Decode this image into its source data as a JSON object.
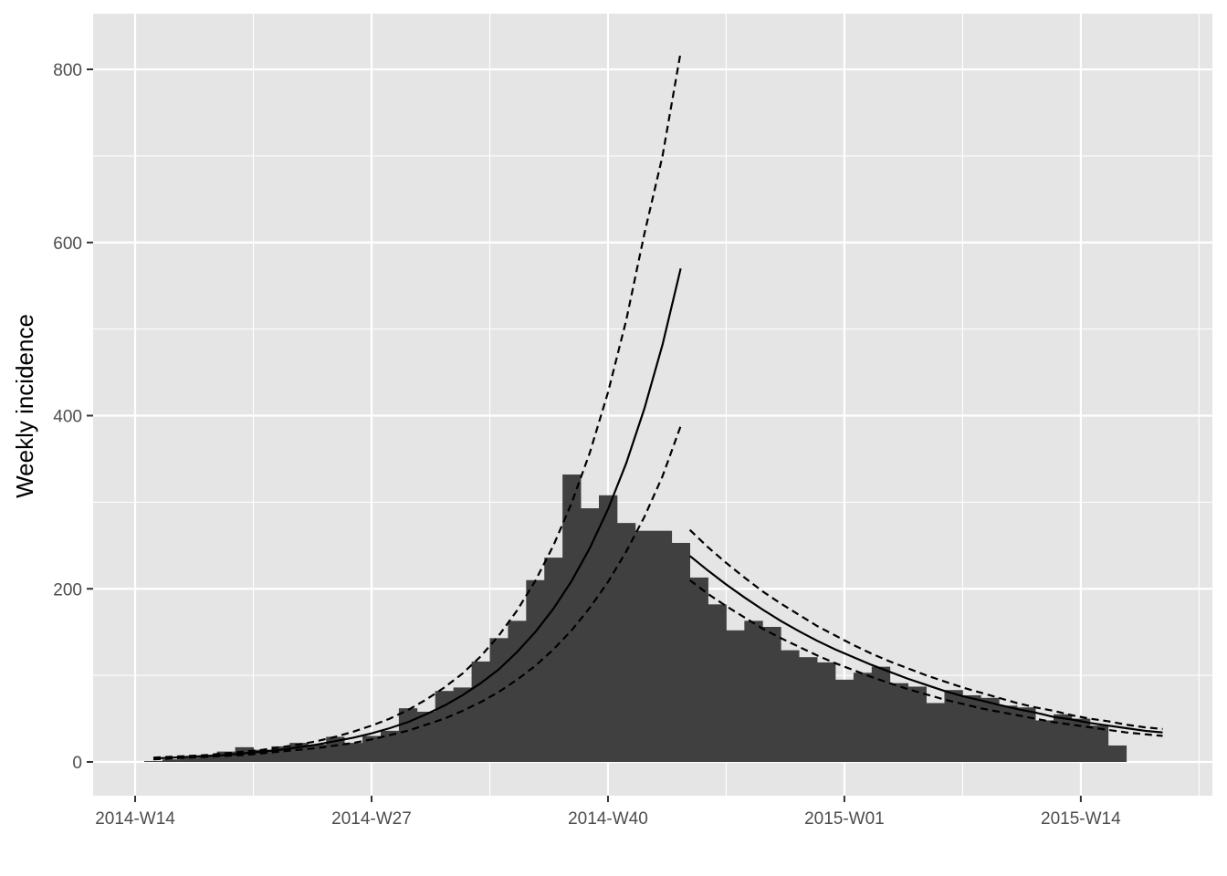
{
  "chart_data": {
    "type": "bar",
    "title": "",
    "xlabel": "",
    "ylabel": "Weekly incidence",
    "x_tick_labels": [
      "2014-W14",
      "2014-W27",
      "2014-W40",
      "2015-W01",
      "2015-W14"
    ],
    "y_ticks": [
      0,
      200,
      400,
      600,
      800
    ],
    "ylim": [
      -40,
      860
    ],
    "grid": true,
    "colors": {
      "panel_background": "#e5e5e5",
      "grid": "#ffffff",
      "bars": "#404040",
      "fit_lines": "#000000"
    },
    "series": [
      {
        "type": "bar",
        "values": [
          1,
          3,
          5,
          7,
          12,
          17,
          14,
          18,
          22,
          20,
          29,
          22,
          30,
          36,
          62,
          58,
          82,
          86,
          116,
          143,
          163,
          210,
          236,
          332,
          293,
          308,
          276,
          267,
          267,
          253,
          213,
          182,
          152,
          163,
          156,
          129,
          121,
          115,
          95,
          103,
          110,
          91,
          87,
          68,
          83,
          77,
          74,
          65,
          63,
          48,
          55,
          50,
          42,
          19
        ]
      },
      {
        "type": "line",
        "style": "solid",
        "role": "fit",
        "values": [
          4,
          5,
          6,
          7,
          8,
          10,
          12,
          14,
          17,
          20,
          24,
          28,
          33,
          39,
          46,
          55,
          65,
          77,
          91,
          107,
          127,
          150,
          177,
          209,
          247,
          292,
          345,
          408,
          482,
          570
        ]
      },
      {
        "type": "line",
        "style": "dashed",
        "role": "upper",
        "values": [
          5,
          6,
          7,
          8,
          10,
          12,
          14,
          17,
          20,
          24,
          29,
          35,
          42,
          50,
          60,
          72,
          86,
          102,
          122,
          146,
          175,
          209,
          250,
          299,
          357,
          427,
          510,
          610,
          700,
          820
        ]
      },
      {
        "type": "line",
        "style": "dashed",
        "role": "lower",
        "values": [
          3,
          4,
          5,
          6,
          7,
          8,
          10,
          12,
          14,
          16,
          19,
          22,
          26,
          31,
          36,
          43,
          50,
          59,
          69,
          81,
          95,
          111,
          130,
          152,
          178,
          208,
          243,
          283,
          330,
          388
        ]
      },
      {
        "type": "line",
        "style": "solid",
        "role": "fit",
        "values": [
          238,
          221,
          205,
          190,
          176,
          163,
          151,
          140,
          130,
          121,
          112,
          104,
          96,
          89,
          82,
          76,
          71,
          66,
          61,
          57,
          52,
          49,
          45,
          42,
          39,
          36,
          34
        ]
      },
      {
        "type": "line",
        "style": "dashed",
        "role": "upper",
        "values": [
          268,
          248,
          230,
          213,
          197,
          183,
          170,
          157,
          146,
          135,
          125,
          116,
          108,
          100,
          93,
          86,
          80,
          74,
          68,
          63,
          59,
          54,
          50,
          47,
          43,
          40,
          38
        ]
      },
      {
        "type": "line",
        "style": "dashed",
        "role": "lower",
        "values": [
          210,
          194,
          180,
          167,
          154,
          143,
          133,
          123,
          114,
          106,
          98,
          91,
          84,
          78,
          72,
          67,
          62,
          58,
          54,
          50,
          46,
          43,
          40,
          37,
          34,
          32,
          30
        ]
      }
    ]
  }
}
